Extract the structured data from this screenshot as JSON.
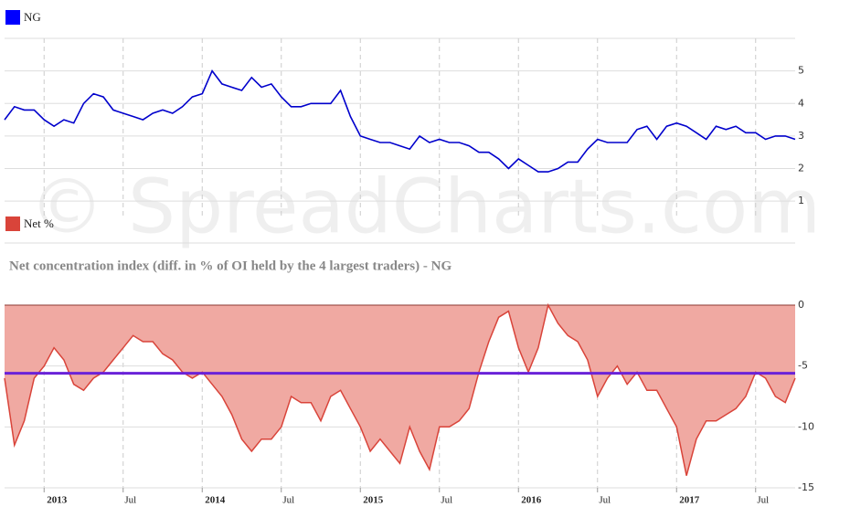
{
  "watermark": "© SpreadCharts.com",
  "chart_data": [
    {
      "type": "line",
      "x": [
        2012.75,
        2012.8125,
        2012.875,
        2012.9375,
        2013,
        2013.0625,
        2013.125,
        2013.1875,
        2013.25,
        2013.3125,
        2013.375,
        2013.4375,
        2013.5,
        2013.5625,
        2013.625,
        2013.6875,
        2013.75,
        2013.8125,
        2013.875,
        2013.9375,
        2014,
        2014.0625,
        2014.125,
        2014.1875,
        2014.25,
        2014.3125,
        2014.375,
        2014.4375,
        2014.5,
        2014.5625,
        2014.625,
        2014.6875,
        2014.75,
        2014.8125,
        2014.875,
        2014.9375,
        2015,
        2015.0625,
        2015.125,
        2015.1875,
        2015.25,
        2015.3125,
        2015.375,
        2015.4375,
        2015.5,
        2015.5625,
        2015.625,
        2015.6875,
        2015.75,
        2015.8125,
        2015.875,
        2015.9375,
        2016,
        2016.0625,
        2016.125,
        2016.1875,
        2016.25,
        2016.3125,
        2016.375,
        2016.4375,
        2016.5,
        2016.5625,
        2016.625,
        2016.6875,
        2016.75,
        2016.8125,
        2016.875,
        2016.9375,
        2017,
        2017.0625,
        2017.125,
        2017.1875,
        2017.25,
        2017.3125,
        2017.375,
        2017.4375,
        2017.5,
        2017.5625,
        2017.625,
        2017.6875,
        2017.75
      ],
      "series": [
        {
          "name": "NG",
          "color": "#0000cc",
          "legend_color": "#0000ff",
          "values": [
            3.5,
            3.9,
            3.8,
            3.8,
            3.5,
            3.3,
            3.5,
            3.4,
            4.0,
            4.3,
            4.2,
            3.8,
            3.7,
            3.6,
            3.5,
            3.7,
            3.8,
            3.7,
            3.9,
            4.2,
            4.3,
            5.0,
            4.6,
            4.5,
            4.4,
            4.8,
            4.5,
            4.6,
            4.2,
            3.9,
            3.9,
            4.0,
            4.0,
            4.0,
            4.4,
            3.6,
            3.0,
            2.9,
            2.8,
            2.8,
            2.7,
            2.6,
            3.0,
            2.8,
            2.9,
            2.8,
            2.8,
            2.7,
            2.5,
            2.5,
            2.3,
            2.0,
            2.3,
            2.1,
            1.9,
            1.9,
            2.0,
            2.2,
            2.2,
            2.6,
            2.9,
            2.8,
            2.8,
            2.8,
            3.2,
            3.3,
            2.9,
            3.3,
            3.4,
            3.3,
            3.1,
            2.9,
            3.3,
            3.2,
            3.3,
            3.1,
            3.1,
            2.9,
            3.0,
            3.0,
            2.9
          ]
        }
      ],
      "xlim": [
        2012.75,
        2017.75
      ],
      "ylim": [
        0.5,
        6
      ],
      "yticks": [
        1,
        2,
        3,
        4,
        5
      ],
      "grid": true
    },
    {
      "type": "area",
      "title": "Net concentration index (diff. in % of OI held by the 4 largest traders) - NG",
      "x": [
        2012.75,
        2012.8125,
        2012.875,
        2012.9375,
        2013,
        2013.0625,
        2013.125,
        2013.1875,
        2013.25,
        2013.3125,
        2013.375,
        2013.4375,
        2013.5,
        2013.5625,
        2013.625,
        2013.6875,
        2013.75,
        2013.8125,
        2013.875,
        2013.9375,
        2014,
        2014.0625,
        2014.125,
        2014.1875,
        2014.25,
        2014.3125,
        2014.375,
        2014.4375,
        2014.5,
        2014.5625,
        2014.625,
        2014.6875,
        2014.75,
        2014.8125,
        2014.875,
        2014.9375,
        2015,
        2015.0625,
        2015.125,
        2015.1875,
        2015.25,
        2015.3125,
        2015.375,
        2015.4375,
        2015.5,
        2015.5625,
        2015.625,
        2015.6875,
        2015.75,
        2015.8125,
        2015.875,
        2015.9375,
        2016,
        2016.0625,
        2016.125,
        2016.1875,
        2016.25,
        2016.3125,
        2016.375,
        2016.4375,
        2016.5,
        2016.5625,
        2016.625,
        2016.6875,
        2016.75,
        2016.8125,
        2016.875,
        2016.9375,
        2017,
        2017.0625,
        2017.125,
        2017.1875,
        2017.25,
        2017.3125,
        2017.375,
        2017.4375,
        2017.5,
        2017.5625,
        2017.625,
        2017.6875,
        2017.75
      ],
      "series": [
        {
          "name": "Net %",
          "color": "#d9443a",
          "fill": "#f0a9a2",
          "values": [
            -6,
            -11.5,
            -9.5,
            -6,
            -5,
            -3.5,
            -4.5,
            -6.5,
            -7,
            -6,
            -5.5,
            -4.5,
            -3.5,
            -2.5,
            -3,
            -3,
            -4,
            -4.5,
            -5.5,
            -6,
            -5.5,
            -6.5,
            -7.5,
            -9,
            -11,
            -12,
            -11,
            -11,
            -10,
            -7.5,
            -8,
            -8,
            -9.5,
            -7.5,
            -7,
            -8.5,
            -10,
            -12,
            -11,
            -12,
            -13,
            -10,
            -12,
            -13.5,
            -10,
            -10,
            -9.5,
            -8.5,
            -5.5,
            -3,
            -1,
            -0.5,
            -3.5,
            -5.5,
            -3.5,
            0,
            -1.5,
            -2.5,
            -3,
            -4.5,
            -7.5,
            -6,
            -5,
            -6.5,
            -5.5,
            -7,
            -7,
            -8.5,
            -10,
            -14,
            -11,
            -9.5,
            -9.5,
            -9,
            -8.5,
            -7.5,
            -5.5,
            -6,
            -7.5,
            -8,
            -6
          ]
        }
      ],
      "reference_line": {
        "value": -5.6,
        "color": "#6a22d8"
      },
      "xlim": [
        2012.75,
        2017.75
      ],
      "xticks": [
        {
          "value": 2013,
          "label": "2013"
        },
        {
          "value": 2013.5,
          "label": "Jul"
        },
        {
          "value": 2014,
          "label": "2014"
        },
        {
          "value": 2014.5,
          "label": "Jul"
        },
        {
          "value": 2015,
          "label": "2015"
        },
        {
          "value": 2015.5,
          "label": "Jul"
        },
        {
          "value": 2016,
          "label": "2016"
        },
        {
          "value": 2016.5,
          "label": "Jul"
        },
        {
          "value": 2017,
          "label": "2017"
        },
        {
          "value": 2017.5,
          "label": "Jul"
        }
      ],
      "ylim": [
        -15,
        0
      ],
      "yticks": [
        0,
        -5,
        -10,
        -15
      ],
      "grid": true
    }
  ]
}
